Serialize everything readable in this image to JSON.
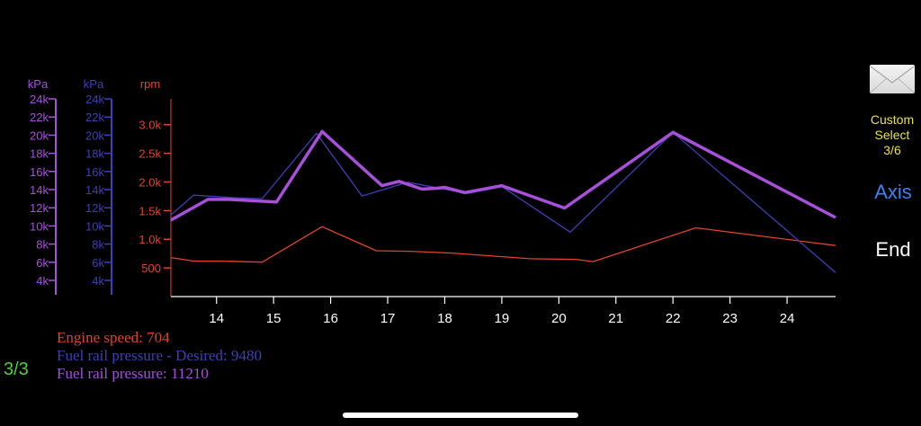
{
  "colors": {
    "engine": "#e0432b",
    "desired": "#3f3fb8",
    "pressure": "#a84fdc",
    "custom": "#e8e337",
    "axis_button": "#3b82f6",
    "end_button": "#ffffff",
    "page": "#4cd137"
  },
  "chart_data": {
    "type": "line",
    "x_ticks": [
      "14",
      "15",
      "16",
      "17",
      "18",
      "19",
      "20",
      "21",
      "22",
      "23",
      "24"
    ],
    "xlim": [
      13.2,
      24.85
    ],
    "axes": [
      {
        "unit": "kPa",
        "color": "#a84fdc",
        "ticks": [
          "24k",
          "22k",
          "20k",
          "18k",
          "16k",
          "14k",
          "12k",
          "10k",
          "8k",
          "6k",
          "4k"
        ],
        "ylim": [
          2000,
          25000
        ]
      },
      {
        "unit": "kPa",
        "color": "#3f3fb8",
        "ticks": [
          "24k",
          "22k",
          "20k",
          "18k",
          "16k",
          "14k",
          "12k",
          "10k",
          "8k",
          "6k",
          "4k"
        ],
        "ylim": [
          2000,
          25000
        ]
      },
      {
        "unit": "rpm",
        "color": "#e0432b",
        "ticks": [
          "3.0k",
          "2.5k",
          "2.0k",
          "1.5k",
          "1.0k",
          "500"
        ],
        "tick_values": [
          3000,
          2500,
          2000,
          1500,
          1000,
          500
        ],
        "ylim": [
          0,
          3450
        ]
      }
    ],
    "series": [
      {
        "name": "Engine speed",
        "axis": 2,
        "color": "#e0432b",
        "width": 1.3,
        "points": [
          [
            13.2,
            680
          ],
          [
            13.6,
            620
          ],
          [
            14.1,
            620
          ],
          [
            14.8,
            600
          ],
          [
            15.85,
            1220
          ],
          [
            16.8,
            800
          ],
          [
            17.4,
            790
          ],
          [
            18.1,
            760
          ],
          [
            19.5,
            660
          ],
          [
            20.3,
            650
          ],
          [
            20.6,
            610
          ],
          [
            22.4,
            1200
          ],
          [
            24.85,
            890
          ]
        ]
      },
      {
        "name": "Fuel rail pressure  -  Desired",
        "axis": 1,
        "color": "#3f3fb8",
        "width": 1.3,
        "points": [
          [
            13.2,
            11500
          ],
          [
            13.6,
            13800
          ],
          [
            14.3,
            13500
          ],
          [
            14.8,
            13400
          ],
          [
            15.75,
            21000
          ],
          [
            16.55,
            13700
          ],
          [
            17.35,
            15300
          ],
          [
            18.4,
            14000
          ],
          [
            19.0,
            14800
          ],
          [
            20.2,
            9500
          ],
          [
            22.0,
            21100
          ],
          [
            24.85,
            4800
          ]
        ]
      },
      {
        "name": "Fuel rail pressure",
        "axis": 0,
        "color": "#a84fdc",
        "width": 3.5,
        "points": [
          [
            13.2,
            10900
          ],
          [
            13.85,
            13300
          ],
          [
            14.2,
            13300
          ],
          [
            15.05,
            13000
          ],
          [
            15.85,
            21200
          ],
          [
            16.9,
            14900
          ],
          [
            17.2,
            15400
          ],
          [
            17.6,
            14500
          ],
          [
            17.85,
            14600
          ],
          [
            18.0,
            14700
          ],
          [
            18.35,
            14100
          ],
          [
            19.0,
            14900
          ],
          [
            20.1,
            12300
          ],
          [
            22.0,
            21100
          ],
          [
            24.85,
            11200
          ]
        ]
      }
    ]
  },
  "legend": {
    "engine_speed": "Engine speed: 704",
    "fuel_desired": "Fuel rail pressure  -  Desired: 9480",
    "fuel_pressure": "Fuel rail pressure: 11210"
  },
  "sidebar": {
    "custom_line1": "Custom",
    "custom_line2": "Select",
    "custom_line3": "3/6",
    "axis_label": "Axis",
    "end_label": "End"
  },
  "page_indicator": "3/3",
  "icons": {
    "mail": "envelope-icon"
  }
}
